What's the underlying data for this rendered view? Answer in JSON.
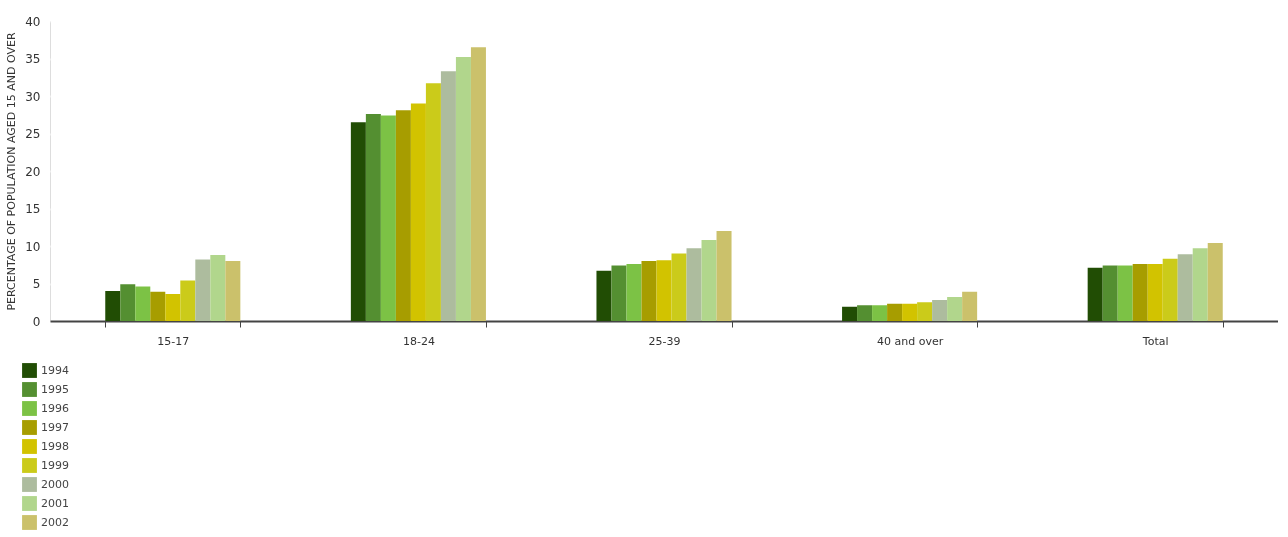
{
  "chart_data": {
    "type": "bar",
    "ylabel": "PERCENTAGE OF POPULATION AGED 15 AND OVER",
    "categories": [
      "15-17",
      "18-24",
      "25-39",
      "40 and over",
      "Total"
    ],
    "series": [
      {
        "name": "1994",
        "color": "#214d04",
        "values": [
          4.0,
          26.5,
          6.7,
          1.9,
          7.1
        ]
      },
      {
        "name": "1995",
        "color": "#548f31",
        "values": [
          4.9,
          27.6,
          7.4,
          2.1,
          7.4
        ]
      },
      {
        "name": "1996",
        "color": "#7cc245",
        "values": [
          4.6,
          27.4,
          7.6,
          2.1,
          7.4
        ]
      },
      {
        "name": "1997",
        "color": "#a79d00",
        "values": [
          3.9,
          28.1,
          8.0,
          2.3,
          7.6
        ]
      },
      {
        "name": "1998",
        "color": "#d2c300",
        "values": [
          3.6,
          29.0,
          8.1,
          2.3,
          7.6
        ]
      },
      {
        "name": "1999",
        "color": "#cbcb1a",
        "values": [
          5.4,
          31.7,
          9.0,
          2.5,
          8.3
        ]
      },
      {
        "name": "2000",
        "color": "#adbc9e",
        "values": [
          8.2,
          33.3,
          9.7,
          2.8,
          8.9
        ]
      },
      {
        "name": "2001",
        "color": "#b1d68c",
        "values": [
          8.8,
          35.2,
          10.8,
          3.2,
          9.7
        ]
      },
      {
        "name": "2002",
        "color": "#cbc16b",
        "values": [
          8.0,
          36.5,
          12.0,
          3.9,
          10.4
        ]
      }
    ],
    "ylim": [
      0,
      40
    ],
    "yticks": [
      0,
      5,
      10,
      15,
      20,
      25,
      30,
      35,
      40
    ],
    "grid": "y",
    "legend": "bottom left"
  }
}
